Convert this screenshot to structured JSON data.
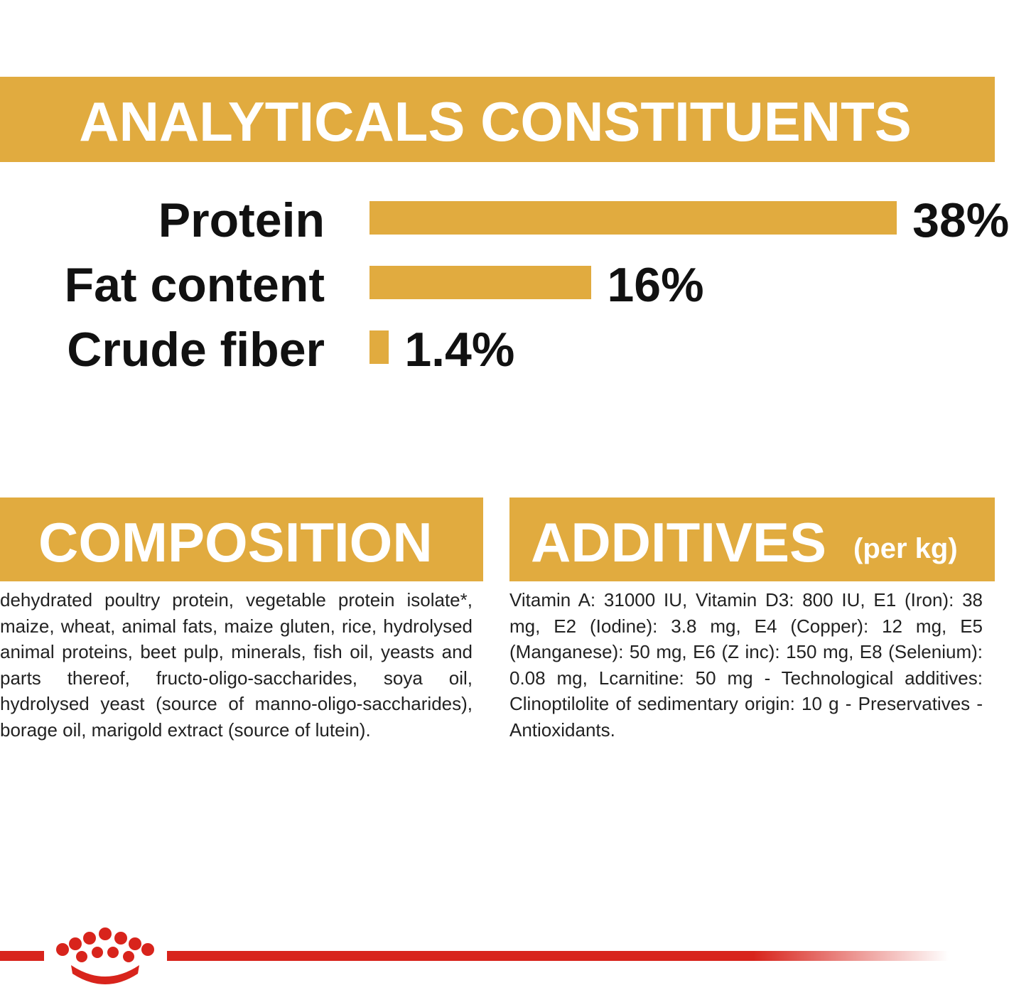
{
  "chart_data": {
    "type": "bar",
    "title": "ANALYTICALS CONSTITUENTS",
    "categories": [
      "Protein",
      "Fat content",
      "Crude fiber"
    ],
    "values": [
      38,
      16,
      1.4
    ],
    "value_labels": [
      "38%",
      "16%",
      "1.4%"
    ],
    "color": "#e1ab3f"
  },
  "composition": {
    "title": "COMPOSITION",
    "text": "dehydrated poultry protein, vegetable protein isolate*, maize, wheat, animal fats, maize gluten, rice, hydrolysed animal proteins, beet pulp, minerals, fish oil, yeasts and parts thereof, fructo-oligo-saccharides, soya oil, hydrolysed yeast (source of manno-oligo-saccharides), borage oil, marigold extract (source of lutein)."
  },
  "additives": {
    "title": "ADDITIVES",
    "subtitle": "(per kg)",
    "text": "Vitamin A: 31000 IU, Vitamin D3: 800 IU, E1 (Iron): 38 mg, E2 (Iodine): 3.8 mg, E4 (Copper): 12 mg, E5 (Manganese): 50 mg, E6 (Z inc): 150 mg, E8 (Selenium): 0.08 mg, Lcarnitine: 50 mg - Technological additives: Clinoptilolite of sedimentary origin: 10 g - Preservatives - Antioxidants."
  }
}
